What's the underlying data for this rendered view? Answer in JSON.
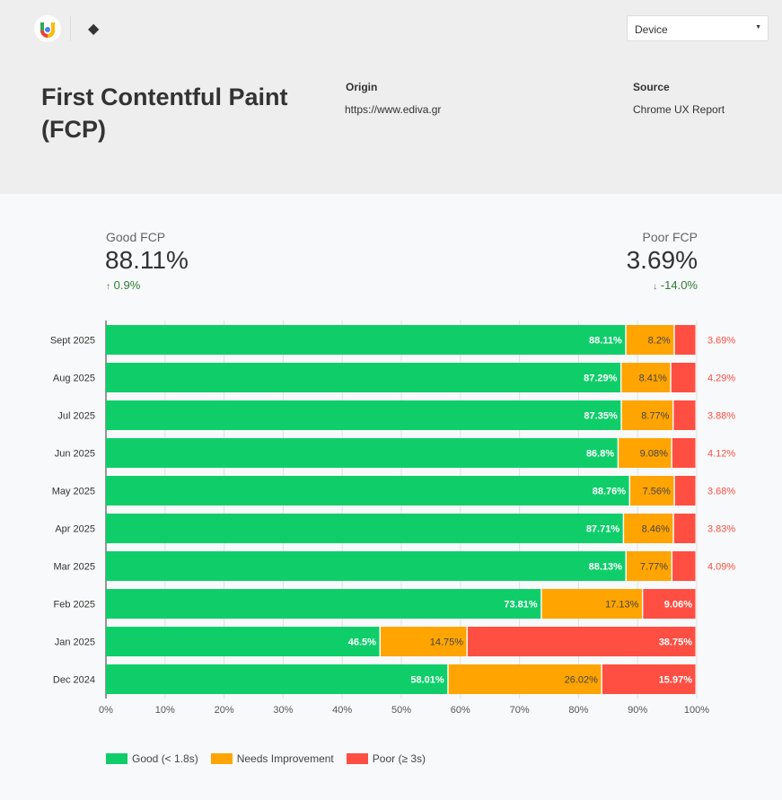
{
  "header": {
    "device_select": "Device",
    "title": "First Contentful Paint (FCP)",
    "origin_label": "Origin",
    "origin_value": "https://www.ediva.gr",
    "source_label": "Source",
    "source_value": "Chrome UX Report"
  },
  "kpis": {
    "good": {
      "label": "Good FCP",
      "value": "88.11%",
      "delta": "0.9%",
      "arrow": "↑"
    },
    "poor": {
      "label": "Poor FCP",
      "value": "3.69%",
      "delta": "-14.0%",
      "arrow": "↓"
    }
  },
  "colors": {
    "good": "#0fce6a",
    "needs": "#ffa400",
    "poor": "#ff4e42"
  },
  "chart_data": {
    "type": "bar",
    "stacked": true,
    "orientation": "horizontal",
    "categories": [
      "Sept 2025",
      "Aug 2025",
      "Jul 2025",
      "Jun 2025",
      "May 2025",
      "Apr 2025",
      "Mar 2025",
      "Feb 2025",
      "Jan 2025",
      "Dec 2024"
    ],
    "series": [
      {
        "name": "Good (< 1.8s)",
        "values": [
          88.11,
          87.29,
          87.35,
          86.8,
          88.76,
          87.71,
          88.13,
          73.81,
          46.5,
          58.01
        ]
      },
      {
        "name": "Needs Improvement",
        "values": [
          8.2,
          8.41,
          8.77,
          9.08,
          7.56,
          8.46,
          7.77,
          17.13,
          14.75,
          26.02
        ]
      },
      {
        "name": "Poor (≥ 3s)",
        "values": [
          3.69,
          4.29,
          3.88,
          4.12,
          3.68,
          3.83,
          4.09,
          9.06,
          38.75,
          15.97
        ]
      }
    ],
    "xlim": [
      0,
      100
    ],
    "xticks": [
      "0%",
      "10%",
      "20%",
      "30%",
      "40%",
      "50%",
      "60%",
      "70%",
      "80%",
      "90%",
      "100%"
    ],
    "grid": true,
    "legend": "bottom-left"
  }
}
